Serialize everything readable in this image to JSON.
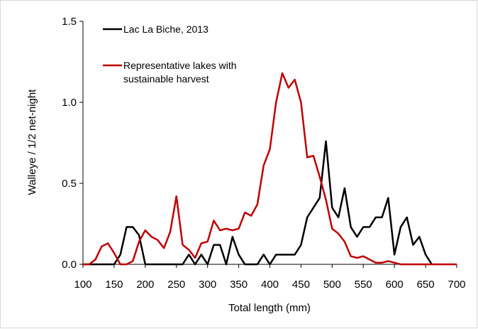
{
  "chart_data": {
    "type": "line",
    "x": [
      100,
      110,
      120,
      130,
      140,
      150,
      160,
      170,
      180,
      190,
      200,
      210,
      220,
      230,
      240,
      250,
      260,
      270,
      280,
      290,
      300,
      310,
      320,
      330,
      340,
      350,
      360,
      370,
      380,
      390,
      400,
      410,
      420,
      430,
      440,
      450,
      460,
      470,
      480,
      490,
      500,
      510,
      520,
      530,
      540,
      550,
      560,
      570,
      580,
      590,
      600,
      610,
      620,
      630,
      640,
      650,
      660,
      670,
      680,
      690,
      700
    ],
    "series": [
      {
        "name": "Lac La Biche, 2013",
        "color": "#000000",
        "values": [
          0,
          0,
          0,
          0,
          0,
          0,
          0.06,
          0.23,
          0.23,
          0.18,
          0,
          0,
          0,
          0,
          0,
          0,
          0,
          0.06,
          0,
          0.06,
          0,
          0.12,
          0.12,
          0,
          0.17,
          0.06,
          0,
          0,
          0,
          0.06,
          0,
          0.06,
          0.06,
          0.06,
          0.06,
          0.12,
          0.29,
          0.35,
          0.41,
          0.76,
          0.35,
          0.29,
          0.47,
          0.23,
          0.17,
          0.23,
          0.23,
          0.29,
          0.29,
          0.41,
          0.06,
          0.23,
          0.29,
          0.12,
          0.17,
          0.06,
          0,
          null,
          null,
          null,
          null
        ]
      },
      {
        "name": "Representative lakes with sustainable harvest",
        "color": "#c00000",
        "values": [
          0,
          0,
          0.03,
          0.11,
          0.13,
          0.07,
          0,
          0,
          0.02,
          0.14,
          0.21,
          0.17,
          0.15,
          0.1,
          0.2,
          0.42,
          0.12,
          0.09,
          0.04,
          0.13,
          0.14,
          0.27,
          0.21,
          0.22,
          0.21,
          0.22,
          0.32,
          0.3,
          0.37,
          0.61,
          0.71,
          1.0,
          1.18,
          1.09,
          1.14,
          1.0,
          0.66,
          0.67,
          0.54,
          0.4,
          0.22,
          0.19,
          0.14,
          0.05,
          0.04,
          0.05,
          0.03,
          0.01,
          0.01,
          0.02,
          0.01,
          0,
          0,
          0,
          0,
          0,
          0,
          0,
          0,
          0,
          0
        ]
      }
    ],
    "xlabel": "Total length (mm)",
    "ylabel": "Walleye / 1/2 net-night",
    "xlim": [
      100,
      700
    ],
    "xticks": [
      100,
      150,
      200,
      250,
      300,
      350,
      400,
      450,
      500,
      550,
      600,
      650,
      700
    ],
    "ylim": [
      0,
      1.5
    ],
    "yticks": [
      {
        "value": 0,
        "label": "0.0"
      },
      {
        "value": 0.5,
        "label": "0.5"
      },
      {
        "value": 1,
        "label": "1.0"
      },
      {
        "value": 1.5,
        "label": "1.5"
      }
    ]
  }
}
